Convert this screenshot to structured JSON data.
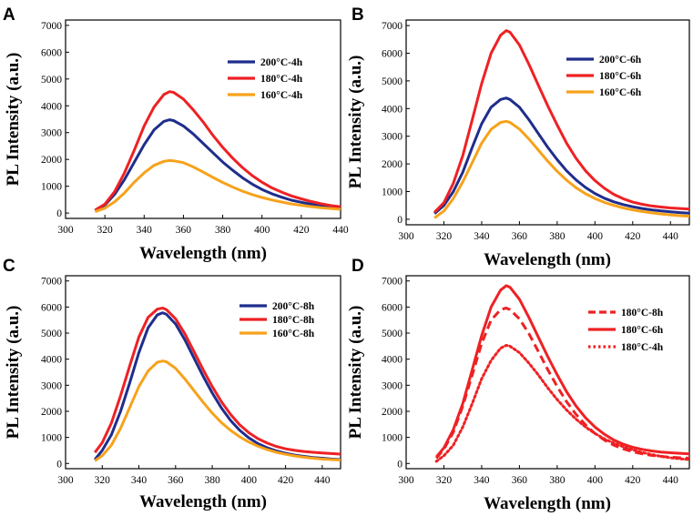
{
  "chart_data": [
    {
      "panel": "A",
      "type": "line",
      "xlabel": "Wavelength (nm)",
      "ylabel": "PL Intensity (a.u.)",
      "xlim": [
        300,
        440
      ],
      "ylim": [
        -200,
        7200
      ],
      "xticks": [
        300,
        320,
        340,
        360,
        380,
        400,
        420,
        440
      ],
      "yticks": [
        0,
        1000,
        2000,
        3000,
        4000,
        5000,
        6000,
        7000
      ],
      "legend_position": "top-right",
      "series": [
        {
          "name": "200°C-4h",
          "color": "#1f2d8c",
          "style": "solid",
          "x": [
            315,
            320,
            325,
            330,
            335,
            340,
            345,
            350,
            353,
            355,
            360,
            365,
            370,
            375,
            380,
            385,
            390,
            395,
            400,
            405,
            410,
            415,
            420,
            425,
            430,
            435,
            440
          ],
          "y": [
            100,
            300,
            700,
            1250,
            1900,
            2550,
            3100,
            3420,
            3480,
            3450,
            3250,
            2950,
            2600,
            2250,
            1900,
            1600,
            1320,
            1080,
            880,
            720,
            590,
            480,
            400,
            330,
            270,
            220,
            190
          ]
        },
        {
          "name": "180°C-4h",
          "color": "#ee2124",
          "style": "solid",
          "x": [
            315,
            320,
            325,
            330,
            335,
            340,
            345,
            350,
            353,
            355,
            360,
            365,
            370,
            375,
            380,
            385,
            390,
            395,
            400,
            405,
            410,
            415,
            420,
            425,
            430,
            435,
            440
          ],
          "y": [
            110,
            330,
            800,
            1500,
            2350,
            3250,
            3950,
            4420,
            4530,
            4500,
            4250,
            3850,
            3400,
            2900,
            2450,
            2050,
            1700,
            1400,
            1150,
            940,
            780,
            640,
            530,
            430,
            350,
            280,
            230
          ]
        },
        {
          "name": "160°C-4h",
          "color": "#f7a21b",
          "style": "solid",
          "x": [
            315,
            320,
            325,
            330,
            335,
            340,
            345,
            350,
            353,
            355,
            360,
            365,
            370,
            375,
            380,
            385,
            390,
            395,
            400,
            405,
            410,
            415,
            420,
            425,
            430,
            435,
            440
          ],
          "y": [
            50,
            180,
            420,
            750,
            1150,
            1500,
            1780,
            1930,
            1960,
            1950,
            1880,
            1720,
            1530,
            1330,
            1140,
            970,
            820,
            690,
            580,
            490,
            410,
            340,
            290,
            240,
            200,
            170,
            140
          ]
        }
      ]
    },
    {
      "panel": "B",
      "type": "line",
      "xlabel": "Wavelength (nm)",
      "ylabel": "PL Intensity (a.u.)",
      "xlim": [
        300,
        450
      ],
      "ylim": [
        -200,
        7200
      ],
      "xticks": [
        300,
        320,
        340,
        360,
        380,
        400,
        420,
        440
      ],
      "yticks": [
        0,
        1000,
        2000,
        3000,
        4000,
        5000,
        6000,
        7000
      ],
      "legend_position": "top-right",
      "series": [
        {
          "name": "200°C-6h",
          "color": "#1f2d8c",
          "style": "solid",
          "x": [
            315,
            320,
            325,
            330,
            335,
            340,
            345,
            350,
            353,
            355,
            360,
            365,
            370,
            375,
            380,
            385,
            390,
            395,
            400,
            405,
            410,
            415,
            420,
            425,
            430,
            435,
            440,
            445,
            450
          ],
          "y": [
            200,
            500,
            1000,
            1700,
            2600,
            3450,
            4050,
            4330,
            4380,
            4330,
            4050,
            3600,
            3100,
            2600,
            2150,
            1750,
            1420,
            1150,
            930,
            760,
            630,
            530,
            450,
            390,
            340,
            300,
            270,
            240,
            220
          ]
        },
        {
          "name": "180°C-6h",
          "color": "#ee2124",
          "style": "solid",
          "x": [
            315,
            320,
            325,
            330,
            335,
            340,
            345,
            350,
            353,
            355,
            360,
            365,
            370,
            375,
            380,
            385,
            390,
            395,
            400,
            405,
            410,
            415,
            420,
            425,
            430,
            435,
            440,
            445,
            450
          ],
          "y": [
            250,
            600,
            1300,
            2300,
            3600,
            4900,
            6000,
            6650,
            6820,
            6760,
            6300,
            5600,
            4850,
            4100,
            3400,
            2750,
            2200,
            1750,
            1400,
            1120,
            900,
            740,
            620,
            540,
            480,
            440,
            410,
            390,
            370
          ]
        },
        {
          "name": "160°C-6h",
          "color": "#f7a21b",
          "style": "solid",
          "x": [
            315,
            320,
            325,
            330,
            335,
            340,
            345,
            350,
            353,
            355,
            360,
            365,
            370,
            375,
            380,
            385,
            390,
            395,
            400,
            405,
            410,
            415,
            420,
            425,
            430,
            435,
            440,
            445,
            450
          ],
          "y": [
            50,
            300,
            750,
            1350,
            2050,
            2750,
            3250,
            3500,
            3540,
            3500,
            3260,
            2900,
            2500,
            2100,
            1730,
            1410,
            1140,
            920,
            750,
            610,
            500,
            410,
            340,
            280,
            230,
            190,
            160,
            130,
            110
          ]
        }
      ]
    },
    {
      "panel": "C",
      "type": "line",
      "xlabel": "Wavelength (nm)",
      "ylabel": "PL Intensity (a.u.)",
      "xlim": [
        300,
        450
      ],
      "ylim": [
        -200,
        7200
      ],
      "xticks": [
        300,
        320,
        340,
        360,
        380,
        400,
        420,
        440
      ],
      "yticks": [
        0,
        1000,
        2000,
        3000,
        4000,
        5000,
        6000,
        7000
      ],
      "legend_position": "top-right",
      "series": [
        {
          "name": "200°C-8h",
          "color": "#1f2d8c",
          "style": "solid",
          "x": [
            316,
            320,
            325,
            330,
            335,
            340,
            345,
            350,
            353,
            355,
            360,
            365,
            370,
            375,
            380,
            385,
            390,
            395,
            400,
            405,
            410,
            415,
            420,
            425,
            430,
            435,
            440,
            445,
            450
          ],
          "y": [
            150,
            500,
            1100,
            2000,
            3100,
            4250,
            5200,
            5700,
            5780,
            5720,
            5350,
            4750,
            4050,
            3350,
            2700,
            2130,
            1650,
            1270,
            980,
            760,
            600,
            480,
            390,
            320,
            270,
            230,
            200,
            170,
            150
          ]
        },
        {
          "name": "180°C-8h",
          "color": "#ee2124",
          "style": "solid",
          "x": [
            316,
            320,
            325,
            330,
            335,
            340,
            345,
            350,
            353,
            355,
            360,
            365,
            370,
            375,
            380,
            385,
            390,
            395,
            400,
            405,
            410,
            415,
            420,
            425,
            430,
            435,
            440,
            445,
            450
          ],
          "y": [
            420,
            800,
            1550,
            2600,
            3750,
            4850,
            5600,
            5920,
            5960,
            5900,
            5550,
            4980,
            4300,
            3600,
            2950,
            2370,
            1880,
            1480,
            1180,
            950,
            780,
            650,
            560,
            500,
            460,
            430,
            400,
            380,
            360
          ]
        },
        {
          "name": "160°C-8h",
          "color": "#f7a21b",
          "style": "solid",
          "x": [
            316,
            320,
            325,
            330,
            335,
            340,
            345,
            350,
            353,
            355,
            360,
            365,
            370,
            375,
            380,
            385,
            390,
            395,
            400,
            405,
            410,
            415,
            420,
            425,
            430,
            435,
            440,
            445,
            450
          ],
          "y": [
            100,
            300,
            700,
            1350,
            2150,
            2950,
            3550,
            3880,
            3930,
            3900,
            3650,
            3250,
            2800,
            2350,
            1930,
            1570,
            1270,
            1020,
            820,
            660,
            530,
            430,
            350,
            290,
            240,
            200,
            170,
            150,
            130
          ]
        }
      ]
    },
    {
      "panel": "D",
      "type": "line",
      "xlabel": "Wavelength (nm)",
      "ylabel": "PL Intensity (a.u.)",
      "xlim": [
        300,
        450
      ],
      "ylim": [
        -200,
        7200
      ],
      "xticks": [
        300,
        320,
        340,
        360,
        380,
        400,
        420,
        440
      ],
      "yticks": [
        0,
        1000,
        2000,
        3000,
        4000,
        5000,
        6000,
        7000
      ],
      "legend_position": "top-right",
      "series": [
        {
          "name": "180°C-8h",
          "color": "#ee2124",
          "style": "dashed",
          "x": [
            316,
            320,
            325,
            330,
            335,
            340,
            345,
            350,
            353,
            355,
            360,
            365,
            370,
            375,
            380,
            385,
            390,
            395,
            400,
            405,
            410,
            415,
            420,
            425,
            430,
            435,
            440,
            445,
            450
          ],
          "y": [
            200,
            550,
            1200,
            2200,
            3400,
            4600,
            5500,
            5900,
            5960,
            5900,
            5550,
            4980,
            4300,
            3600,
            2950,
            2370,
            1880,
            1480,
            1150,
            900,
            700,
            560,
            450,
            370,
            310,
            270,
            240,
            220,
            200
          ]
        },
        {
          "name": "180°C-6h",
          "color": "#ee2124",
          "style": "solid",
          "x": [
            316,
            320,
            325,
            330,
            335,
            340,
            345,
            350,
            353,
            355,
            360,
            365,
            370,
            375,
            380,
            385,
            390,
            395,
            400,
            405,
            410,
            415,
            420,
            425,
            430,
            435,
            440,
            445,
            450
          ],
          "y": [
            250,
            600,
            1300,
            2300,
            3600,
            4900,
            6000,
            6650,
            6820,
            6760,
            6300,
            5600,
            4850,
            4100,
            3400,
            2750,
            2200,
            1750,
            1400,
            1120,
            900,
            740,
            620,
            540,
            480,
            440,
            410,
            390,
            370
          ]
        },
        {
          "name": "180°C-4h",
          "color": "#ee2124",
          "style": "dotted",
          "x": [
            316,
            320,
            325,
            330,
            335,
            340,
            345,
            350,
            353,
            355,
            360,
            365,
            370,
            375,
            380,
            385,
            390,
            395,
            400,
            405,
            410,
            415,
            420,
            425,
            430,
            435,
            440,
            445,
            450
          ],
          "y": [
            80,
            300,
            700,
            1400,
            2300,
            3250,
            3950,
            4420,
            4530,
            4500,
            4250,
            3850,
            3400,
            2900,
            2450,
            2050,
            1700,
            1400,
            1150,
            940,
            780,
            640,
            520,
            420,
            340,
            270,
            220,
            180,
            150
          ]
        }
      ]
    }
  ]
}
